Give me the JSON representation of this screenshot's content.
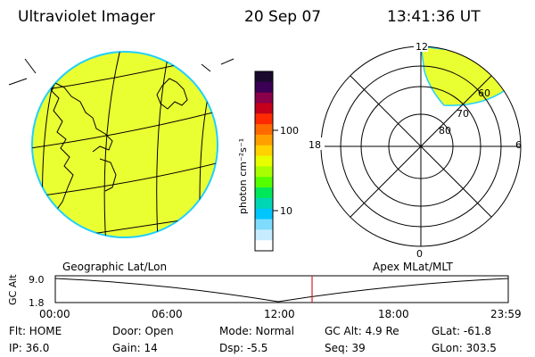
{
  "header": {
    "instrument": "Ultraviolet Imager",
    "date": "20 Sep 07",
    "time": "13:41:36 UT"
  },
  "colorbar": {
    "label": "photon cm⁻²s⁻¹",
    "tick_100": "100",
    "tick_10": "10",
    "colors": [
      "#1a0a2e",
      "#3b0055",
      "#8a004a",
      "#c4001a",
      "#ff2a00",
      "#ff6a00",
      "#ff9f00",
      "#ffd200",
      "#e8ff00",
      "#a8ff00",
      "#54ff00",
      "#00e85a",
      "#00d6b4",
      "#00c6ff",
      "#7fdcff",
      "#c8ecff",
      "#ffffff"
    ]
  },
  "left_panel": {
    "label": "Geographic Lat/Lon",
    "disk_color": "#eaff32",
    "rim_color": "#21d0ff"
  },
  "right_panel": {
    "label": "Apex MLat/MLT",
    "mlt_12": "12",
    "mlt_18": "18",
    "mlt_6": "6",
    "mlt_0": "0",
    "lat_60": "60",
    "lat_70": "70",
    "lat_80": "80"
  },
  "timeline": {
    "y_axis_label": "GC Alt",
    "y_top": "9.0",
    "y_bottom": "1.8",
    "x_ticks": [
      "00:00",
      "06:00",
      "12:00",
      "18:00",
      "23:59"
    ],
    "current_marker": "13:41:36",
    "marker_color": "#d42020"
  },
  "status": {
    "flt": "Flt: HOME",
    "ip": "IP: 36.0",
    "door": "Door: Open",
    "gain": "Gain: 14",
    "mode": "Mode: Normal",
    "dsp": "Dsp:    -5.5",
    "gc_alt": "GC Alt: 4.9 Re",
    "seq": "Seq: 39",
    "glat": "GLat: -61.8",
    "glon": "GLon: 303.5"
  }
}
